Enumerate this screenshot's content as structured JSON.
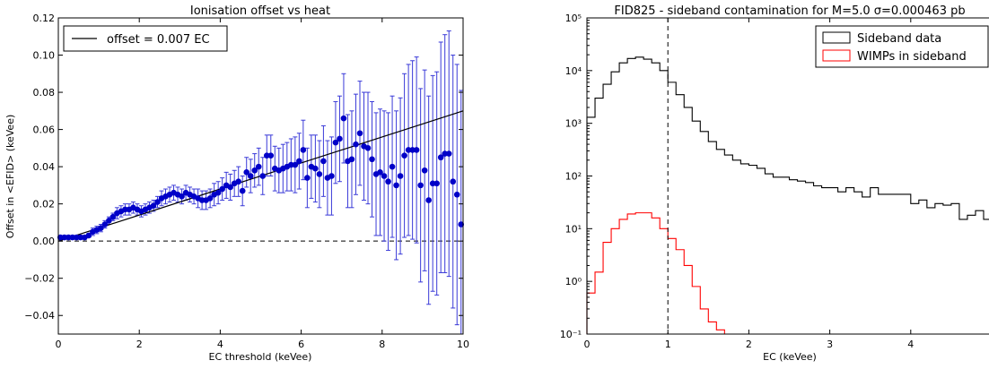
{
  "chart_data": [
    {
      "type": "scatter",
      "title": "Ionisation offset vs heat",
      "xlabel": "EC threshold (keVee)",
      "ylabel": "Offset in <EFID> (keVee)",
      "xlim": [
        0,
        10
      ],
      "ylim": [
        -0.05,
        0.12
      ],
      "xticks": [
        "0",
        "2",
        "4",
        "6",
        "8",
        "10"
      ],
      "yticks": [
        "−0.04",
        "−0.02",
        "0.00",
        "0.02",
        "0.04",
        "0.06",
        "0.08",
        "0.10",
        "0.12"
      ],
      "legend": {
        "label": "offset = 0.007 EC",
        "location": "top-left"
      },
      "fit_line": {
        "slope": 0.007,
        "color": "#000000"
      },
      "zero_line": {
        "y": 0,
        "style": "dashed"
      },
      "point_color": "#0000c8",
      "errorbar_color": "#3a3ad8",
      "points": [
        {
          "x": 0.05,
          "y": 0.002,
          "e": 0.001
        },
        {
          "x": 0.15,
          "y": 0.002,
          "e": 0.001
        },
        {
          "x": 0.25,
          "y": 0.002,
          "e": 0.001
        },
        {
          "x": 0.35,
          "y": 0.002,
          "e": 0.001
        },
        {
          "x": 0.45,
          "y": 0.002,
          "e": 0.001
        },
        {
          "x": 0.55,
          "y": 0.002,
          "e": 0.001
        },
        {
          "x": 0.65,
          "y": 0.002,
          "e": 0.001
        },
        {
          "x": 0.75,
          "y": 0.003,
          "e": 0.001
        },
        {
          "x": 0.85,
          "y": 0.005,
          "e": 0.002
        },
        {
          "x": 0.95,
          "y": 0.006,
          "e": 0.002
        },
        {
          "x": 1.05,
          "y": 0.007,
          "e": 0.002
        },
        {
          "x": 1.15,
          "y": 0.009,
          "e": 0.002
        },
        {
          "x": 1.25,
          "y": 0.011,
          "e": 0.002
        },
        {
          "x": 1.35,
          "y": 0.013,
          "e": 0.002
        },
        {
          "x": 1.45,
          "y": 0.015,
          "e": 0.003
        },
        {
          "x": 1.55,
          "y": 0.016,
          "e": 0.003
        },
        {
          "x": 1.65,
          "y": 0.017,
          "e": 0.003
        },
        {
          "x": 1.75,
          "y": 0.017,
          "e": 0.003
        },
        {
          "x": 1.85,
          "y": 0.018,
          "e": 0.003
        },
        {
          "x": 1.95,
          "y": 0.017,
          "e": 0.003
        },
        {
          "x": 2.05,
          "y": 0.016,
          "e": 0.003
        },
        {
          "x": 2.15,
          "y": 0.017,
          "e": 0.003
        },
        {
          "x": 2.25,
          "y": 0.018,
          "e": 0.003
        },
        {
          "x": 2.35,
          "y": 0.019,
          "e": 0.003
        },
        {
          "x": 2.45,
          "y": 0.021,
          "e": 0.003
        },
        {
          "x": 2.55,
          "y": 0.023,
          "e": 0.004
        },
        {
          "x": 2.65,
          "y": 0.024,
          "e": 0.004
        },
        {
          "x": 2.75,
          "y": 0.025,
          "e": 0.004
        },
        {
          "x": 2.85,
          "y": 0.026,
          "e": 0.004
        },
        {
          "x": 2.95,
          "y": 0.025,
          "e": 0.004
        },
        {
          "x": 3.05,
          "y": 0.024,
          "e": 0.004
        },
        {
          "x": 3.15,
          "y": 0.026,
          "e": 0.004
        },
        {
          "x": 3.25,
          "y": 0.025,
          "e": 0.004
        },
        {
          "x": 3.35,
          "y": 0.024,
          "e": 0.004
        },
        {
          "x": 3.45,
          "y": 0.023,
          "e": 0.005
        },
        {
          "x": 3.55,
          "y": 0.022,
          "e": 0.005
        },
        {
          "x": 3.65,
          "y": 0.022,
          "e": 0.005
        },
        {
          "x": 3.75,
          "y": 0.023,
          "e": 0.005
        },
        {
          "x": 3.85,
          "y": 0.025,
          "e": 0.006
        },
        {
          "x": 3.95,
          "y": 0.026,
          "e": 0.006
        },
        {
          "x": 4.05,
          "y": 0.028,
          "e": 0.006
        },
        {
          "x": 4.15,
          "y": 0.03,
          "e": 0.007
        },
        {
          "x": 4.25,
          "y": 0.029,
          "e": 0.007
        },
        {
          "x": 4.35,
          "y": 0.031,
          "e": 0.007
        },
        {
          "x": 4.45,
          "y": 0.032,
          "e": 0.008
        },
        {
          "x": 4.55,
          "y": 0.027,
          "e": 0.008
        },
        {
          "x": 4.65,
          "y": 0.037,
          "e": 0.008
        },
        {
          "x": 4.75,
          "y": 0.035,
          "e": 0.009
        },
        {
          "x": 4.85,
          "y": 0.038,
          "e": 0.009
        },
        {
          "x": 4.95,
          "y": 0.04,
          "e": 0.01
        },
        {
          "x": 5.05,
          "y": 0.035,
          "e": 0.01
        },
        {
          "x": 5.15,
          "y": 0.046,
          "e": 0.011
        },
        {
          "x": 5.25,
          "y": 0.046,
          "e": 0.011
        },
        {
          "x": 5.35,
          "y": 0.039,
          "e": 0.012
        },
        {
          "x": 5.45,
          "y": 0.038,
          "e": 0.012
        },
        {
          "x": 5.55,
          "y": 0.039,
          "e": 0.013
        },
        {
          "x": 5.65,
          "y": 0.04,
          "e": 0.013
        },
        {
          "x": 5.75,
          "y": 0.041,
          "e": 0.014
        },
        {
          "x": 5.85,
          "y": 0.041,
          "e": 0.015
        },
        {
          "x": 5.95,
          "y": 0.043,
          "e": 0.015
        },
        {
          "x": 6.05,
          "y": 0.049,
          "e": 0.016
        },
        {
          "x": 6.15,
          "y": 0.034,
          "e": 0.016
        },
        {
          "x": 6.25,
          "y": 0.04,
          "e": 0.017
        },
        {
          "x": 6.35,
          "y": 0.039,
          "e": 0.018
        },
        {
          "x": 6.45,
          "y": 0.036,
          "e": 0.018
        },
        {
          "x": 6.55,
          "y": 0.043,
          "e": 0.019
        },
        {
          "x": 6.65,
          "y": 0.034,
          "e": 0.02
        },
        {
          "x": 6.75,
          "y": 0.035,
          "e": 0.021
        },
        {
          "x": 6.85,
          "y": 0.053,
          "e": 0.022
        },
        {
          "x": 6.95,
          "y": 0.055,
          "e": 0.023
        },
        {
          "x": 7.05,
          "y": 0.066,
          "e": 0.024
        },
        {
          "x": 7.15,
          "y": 0.043,
          "e": 0.025
        },
        {
          "x": 7.25,
          "y": 0.044,
          "e": 0.026
        },
        {
          "x": 7.35,
          "y": 0.052,
          "e": 0.027
        },
        {
          "x": 7.45,
          "y": 0.058,
          "e": 0.028
        },
        {
          "x": 7.55,
          "y": 0.051,
          "e": 0.029
        },
        {
          "x": 7.65,
          "y": 0.05,
          "e": 0.03
        },
        {
          "x": 7.75,
          "y": 0.044,
          "e": 0.031
        },
        {
          "x": 7.85,
          "y": 0.036,
          "e": 0.033
        },
        {
          "x": 7.95,
          "y": 0.037,
          "e": 0.034
        },
        {
          "x": 8.05,
          "y": 0.035,
          "e": 0.035
        },
        {
          "x": 8.15,
          "y": 0.032,
          "e": 0.037
        },
        {
          "x": 8.25,
          "y": 0.04,
          "e": 0.038
        },
        {
          "x": 8.35,
          "y": 0.03,
          "e": 0.04
        },
        {
          "x": 8.45,
          "y": 0.035,
          "e": 0.042
        },
        {
          "x": 8.55,
          "y": 0.046,
          "e": 0.044
        },
        {
          "x": 8.65,
          "y": 0.049,
          "e": 0.046
        },
        {
          "x": 8.75,
          "y": 0.049,
          "e": 0.048
        },
        {
          "x": 8.85,
          "y": 0.049,
          "e": 0.05
        },
        {
          "x": 8.95,
          "y": 0.03,
          "e": 0.052
        },
        {
          "x": 9.05,
          "y": 0.038,
          "e": 0.054
        },
        {
          "x": 9.15,
          "y": 0.022,
          "e": 0.056
        },
        {
          "x": 9.25,
          "y": 0.031,
          "e": 0.058
        },
        {
          "x": 9.35,
          "y": 0.031,
          "e": 0.06
        },
        {
          "x": 9.45,
          "y": 0.045,
          "e": 0.062
        },
        {
          "x": 9.55,
          "y": 0.047,
          "e": 0.064
        },
        {
          "x": 9.65,
          "y": 0.047,
          "e": 0.066
        },
        {
          "x": 9.75,
          "y": 0.032,
          "e": 0.068
        },
        {
          "x": 9.85,
          "y": 0.025,
          "e": 0.07
        },
        {
          "x": 9.95,
          "y": 0.009,
          "e": 0.072
        }
      ]
    },
    {
      "type": "line",
      "title": "FID825 - sideband contamination for M=5.0 σ=0.000463 pb",
      "xlabel": "EC (keVee)",
      "ylabel": "",
      "xlim": [
        0,
        5
      ],
      "ylim": [
        0.1,
        100000
      ],
      "yscale": "log",
      "xticks": [
        "0",
        "1",
        "2",
        "3",
        "4"
      ],
      "yticks": [
        "10⁻¹",
        "10⁰",
        "10¹",
        "10²",
        "10³",
        "10⁴",
        "10⁵"
      ],
      "vline": {
        "x": 1.0,
        "style": "dashed"
      },
      "legend": {
        "location": "top-right"
      },
      "bin_width": 0.1,
      "series": [
        {
          "name": "Sideband data",
          "color": "#000000",
          "bin_edges_start": 0,
          "values": [
            1300,
            3000,
            5500,
            9500,
            14000,
            17000,
            18000,
            16500,
            14000,
            10000,
            6000,
            3500,
            2000,
            1100,
            700,
            450,
            320,
            250,
            200,
            170,
            160,
            140,
            110,
            95,
            95,
            85,
            80,
            75,
            65,
            60,
            60,
            50,
            60,
            50,
            40,
            60,
            45,
            45,
            45,
            45,
            30,
            35,
            25,
            30,
            28,
            30,
            15,
            18,
            22,
            15,
            25,
            18,
            16,
            15,
            20,
            10,
            14,
            15
          ]
        },
        {
          "name": "WIMPs in sideband",
          "color": "#ff0000",
          "bin_edges_start": 0,
          "values": [
            0.6,
            1.5,
            5.5,
            10,
            15,
            19,
            20,
            20,
            16,
            10,
            6.5,
            4,
            2,
            0.8,
            0.3,
            0.17,
            0.12
          ]
        }
      ]
    }
  ]
}
